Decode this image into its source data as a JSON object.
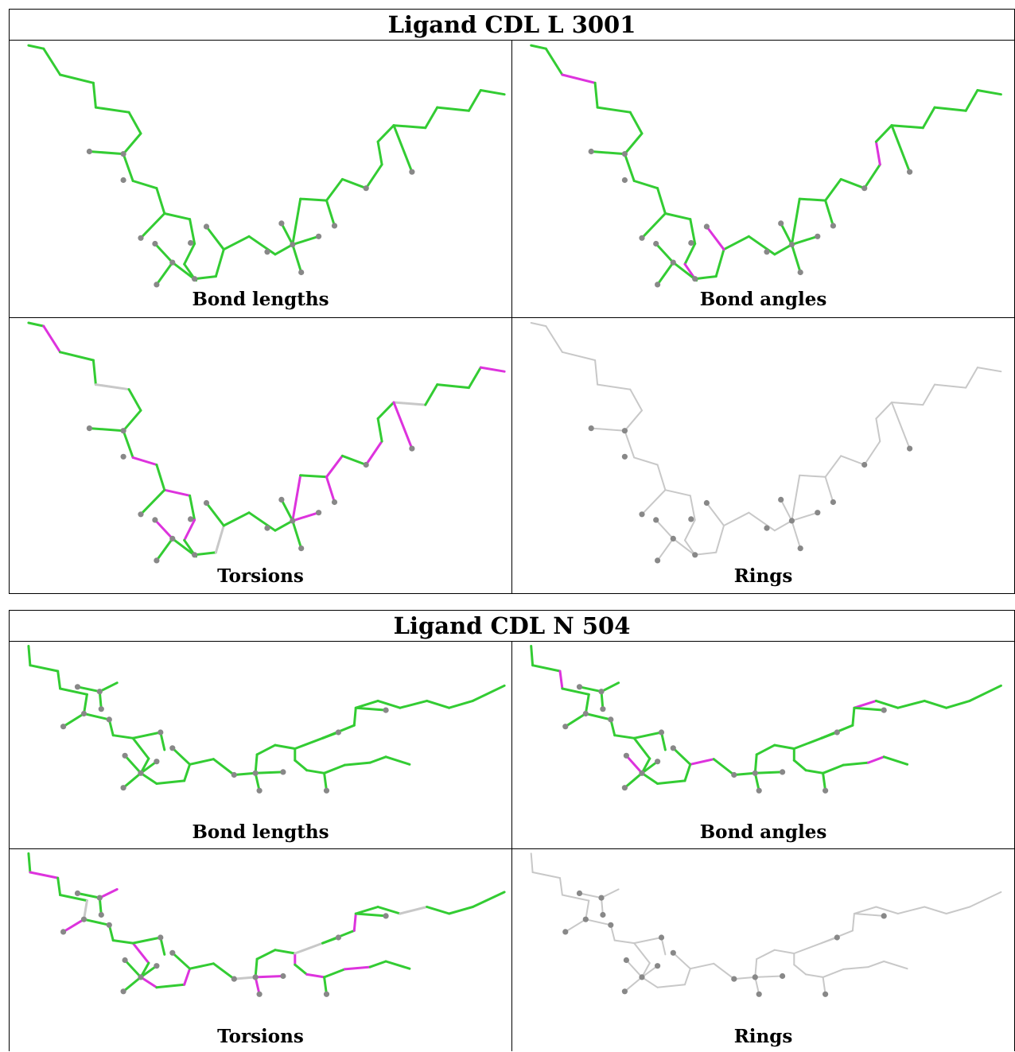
{
  "ligands": [
    {
      "title": "Ligand CDL L 3001",
      "panels": [
        "Bond lengths",
        "Bond angles",
        "Torsions",
        "Rings"
      ],
      "panel_colors": [
        "green",
        "green+magenta",
        "green+magenta",
        "gray"
      ]
    },
    {
      "title": "Ligand CDL N 504",
      "panels": [
        "Bond lengths",
        "Bond angles",
        "Torsions",
        "Rings"
      ],
      "panel_colors": [
        "green",
        "green",
        "green+magenta",
        "gray"
      ]
    }
  ],
  "colors": {
    "good": "#33cc33",
    "outlier": "#dd33dd",
    "neutral": "#c8c8c8",
    "atom": "#888888"
  }
}
